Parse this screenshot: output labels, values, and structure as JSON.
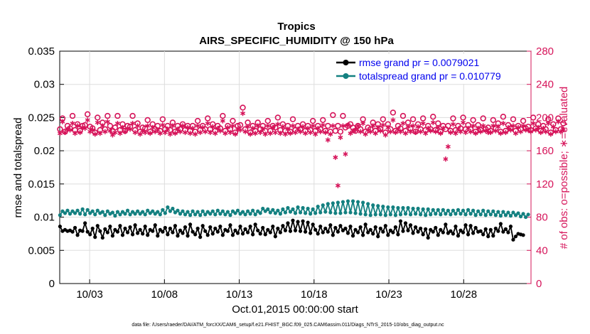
{
  "chart_data": {
    "type": "line",
    "title": "Tropics",
    "subtitle": "AIRS_SPECIFIC_HUMIDITY @ 150 hPa",
    "xlabel": "Oct.01,2015 00:00:00 start",
    "ylabel": "rmse and totalspread",
    "y2label": "# of obs: o=possible; ∗=evaluated",
    "footnote": "data file: /Users/raeder/DAI/ATM_forcXX/CAM6_setup/f.e21.FHIST_BGC.f09_025.CAM6assim.011/Diags_NTrS_2015-10/obs_diag_output.nc",
    "x_ticks": [
      "10/03",
      "10/08",
      "10/13",
      "10/18",
      "10/23",
      "10/28"
    ],
    "x_tick_days": [
      3,
      8,
      13,
      18,
      23,
      28
    ],
    "xlim": [
      1,
      32.5
    ],
    "ylim": [
      0,
      0.035
    ],
    "y_ticks": [
      "0",
      "0.005",
      "0.01",
      "0.015",
      "0.02",
      "0.025",
      "0.03",
      "0.035"
    ],
    "y2lim": [
      0,
      280
    ],
    "y2_ticks": [
      "0",
      "40",
      "80",
      "120",
      "160",
      "200",
      "240",
      "280"
    ],
    "grid": true,
    "legend_position": "top-right",
    "colors": {
      "rmse": "#000000",
      "spread": "#138080",
      "obs": "#d6145a",
      "legend_text": "#0000ee"
    },
    "series": [
      {
        "name": "rmse grand pr = 0.0079021",
        "axis": "left",
        "values": [
          0.0086,
          0.0079,
          0.0081,
          0.0079,
          0.008,
          0.0078,
          0.0084,
          0.0073,
          0.008,
          0.0079,
          0.0091,
          0.0078,
          0.0074,
          0.0083,
          0.007,
          0.0087,
          0.0079,
          0.0069,
          0.0082,
          0.0077,
          0.0086,
          0.0072,
          0.0081,
          0.0078,
          0.0087,
          0.0073,
          0.0083,
          0.0077,
          0.0085,
          0.0074,
          0.0088,
          0.0076,
          0.0081,
          0.0075,
          0.0086,
          0.0073,
          0.0081,
          0.0079,
          0.0088,
          0.0072,
          0.0081,
          0.0078,
          0.0084,
          0.0074,
          0.0083,
          0.0077,
          0.0087,
          0.0072,
          0.008,
          0.0076,
          0.0085,
          0.0072,
          0.0089,
          0.0078,
          0.0074,
          0.0083,
          0.007,
          0.0087,
          0.0079,
          0.0073,
          0.0085,
          0.0075,
          0.0083,
          0.0078,
          0.0086,
          0.0073,
          0.0081,
          0.0079,
          0.0088,
          0.0073,
          0.008,
          0.0076,
          0.0086,
          0.0075,
          0.0082,
          0.0077,
          0.0086,
          0.0074,
          0.0089,
          0.008,
          0.0075,
          0.0084,
          0.0074,
          0.0081,
          0.0077,
          0.0086,
          0.0071,
          0.0083,
          0.0077,
          0.0087,
          0.008,
          0.0091,
          0.0079,
          0.0095,
          0.008,
          0.0093,
          0.0079,
          0.0094,
          0.0078,
          0.0092,
          0.0076,
          0.0089,
          0.0081,
          0.0075,
          0.0086,
          0.0077,
          0.0083,
          0.0078,
          0.0088,
          0.0073,
          0.0084,
          0.0078,
          0.0087,
          0.008,
          0.0083,
          0.0076,
          0.0086,
          0.0072,
          0.0081,
          0.0077,
          0.0085,
          0.0073,
          0.0089,
          0.0077,
          0.0081,
          0.0075,
          0.0085,
          0.0071,
          0.0083,
          0.0078,
          0.0087,
          0.0073,
          0.008,
          0.0077,
          0.0085,
          0.0074,
          0.0094,
          0.0079,
          0.0091,
          0.008,
          0.0088,
          0.0076,
          0.0085,
          0.0078,
          0.0083,
          0.0074,
          0.0082,
          0.0069,
          0.0081,
          0.0078,
          0.0084,
          0.0073,
          0.0081,
          0.0077,
          0.0089,
          0.0076,
          0.0079,
          0.0075,
          0.0086,
          0.0072,
          0.008,
          0.0077,
          0.0088,
          0.0074,
          0.0087,
          0.0076,
          0.0084,
          0.0078,
          0.0079,
          0.0074,
          0.0082,
          0.0071,
          0.0081,
          0.0072,
          0.0083,
          0.0079,
          0.009,
          0.0078,
          0.0082,
          0.0077,
          0.0086,
          0.0066,
          0.0071,
          0.0075,
          0.0074,
          0.0073
        ]
      },
      {
        "name": "totalspread grand pr = 0.010779",
        "axis": "left",
        "values": [
          0.0103,
          0.0109,
          0.0106,
          0.011,
          0.0105,
          0.0109,
          0.0106,
          0.011,
          0.0105,
          0.0112,
          0.0104,
          0.0111,
          0.0106,
          0.0109,
          0.0104,
          0.011,
          0.0106,
          0.0108,
          0.0103,
          0.0109,
          0.0105,
          0.0107,
          0.0102,
          0.0108,
          0.0104,
          0.0108,
          0.0105,
          0.011,
          0.0104,
          0.0108,
          0.0105,
          0.0109,
          0.0105,
          0.0108,
          0.0104,
          0.011,
          0.0106,
          0.0109,
          0.0105,
          0.0108,
          0.0104,
          0.0111,
          0.0106,
          0.0115,
          0.0109,
          0.0113,
          0.0107,
          0.011,
          0.0105,
          0.0109,
          0.0104,
          0.0108,
          0.0103,
          0.0109,
          0.0104,
          0.0108,
          0.0103,
          0.0109,
          0.0104,
          0.0108,
          0.0105,
          0.0109,
          0.0104,
          0.011,
          0.0105,
          0.0109,
          0.0104,
          0.0108,
          0.0103,
          0.0109,
          0.0106,
          0.011,
          0.0105,
          0.0108,
          0.0104,
          0.0109,
          0.0105,
          0.011,
          0.0104,
          0.0109,
          0.0106,
          0.0113,
          0.0109,
          0.0112,
          0.0107,
          0.0111,
          0.0106,
          0.011,
          0.0105,
          0.0112,
          0.0107,
          0.0114,
          0.0108,
          0.0112,
          0.0106,
          0.0115,
          0.0107,
          0.0114,
          0.0106,
          0.0113,
          0.0105,
          0.0112,
          0.0106,
          0.0116,
          0.0107,
          0.0118,
          0.0108,
          0.012,
          0.0107,
          0.0121,
          0.0106,
          0.0122,
          0.0106,
          0.0123,
          0.0107,
          0.0124,
          0.0107,
          0.0124,
          0.0106,
          0.0123,
          0.0105,
          0.0122,
          0.0104,
          0.012,
          0.0103,
          0.0118,
          0.0104,
          0.0117,
          0.0104,
          0.0116,
          0.0103,
          0.0115,
          0.0104,
          0.0115,
          0.0103,
          0.0114,
          0.0104,
          0.0114,
          0.0105,
          0.0114,
          0.0104,
          0.0113,
          0.0105,
          0.0113,
          0.0104,
          0.0112,
          0.0103,
          0.0112,
          0.0104,
          0.0111,
          0.0105,
          0.0111,
          0.0104,
          0.0111,
          0.0105,
          0.011,
          0.0104,
          0.011,
          0.0105,
          0.0111,
          0.0105,
          0.011,
          0.0104,
          0.0111,
          0.0105,
          0.011,
          0.0103,
          0.0109,
          0.0104,
          0.011,
          0.0103,
          0.0109,
          0.0104,
          0.0109,
          0.0103,
          0.0108,
          0.0102,
          0.0108,
          0.0103,
          0.0107,
          0.0102,
          0.0107,
          0.0103,
          0.0106,
          0.0101,
          0.0105,
          0.01,
          0.0104
        ]
      },
      {
        "name": "# of obs possible",
        "axis": "right",
        "values": [
          186,
          199,
          183,
          190,
          187,
          202,
          185,
          192,
          184,
          190,
          191,
          204,
          189,
          187,
          182,
          200,
          185,
          194,
          186,
          202,
          190,
          184,
          188,
          202,
          185,
          192,
          184,
          190,
          189,
          202,
          185,
          193,
          183,
          188,
          187,
          197,
          183,
          192,
          186,
          190,
          184,
          198,
          186,
          190,
          185,
          194,
          183,
          190,
          186,
          192,
          185,
          190,
          184,
          190,
          183,
          196,
          185,
          190,
          186,
          199,
          186,
          192,
          184,
          190,
          187,
          202,
          184,
          190,
          186,
          196,
          182,
          190,
          191,
          212,
          186,
          194,
          182,
          190,
          184,
          194,
          186,
          190,
          184,
          196,
          184,
          190,
          188,
          200,
          185,
          192,
          184,
          190,
          183,
          198,
          185,
          190,
          186,
          192,
          184,
          190,
          185,
          196,
          184,
          190,
          186,
          197,
          184,
          190,
          183,
          203,
          184,
          190,
          183,
          202,
          188,
          190,
          192,
          188,
          184,
          190,
          186,
          198,
          183,
          188,
          186,
          194,
          184,
          192,
          186,
          198,
          182,
          192,
          186,
          206,
          184,
          190,
          187,
          202,
          184,
          194,
          187,
          198,
          183,
          192,
          186,
          199,
          185,
          190,
          186,
          201,
          185,
          193,
          183,
          190,
          186,
          190,
          184,
          199,
          185,
          190,
          187,
          200,
          186,
          191,
          186,
          197,
          183,
          191,
          185,
          199,
          186,
          188,
          184,
          197,
          187,
          193,
          183,
          201,
          184,
          191,
          187,
          198,
          184,
          190,
          186,
          196,
          187,
          189,
          185,
          200,
          187,
          192,
          184,
          190,
          186,
          198,
          182,
          192,
          185,
          199,
          186,
          193
        ]
      },
      {
        "name": "# of obs evaluated",
        "axis": "right",
        "values": [
          181,
          195,
          182,
          186,
          185,
          193,
          181,
          190,
          182,
          188,
          187,
          197,
          183,
          185,
          180,
          194,
          181,
          190,
          183,
          195,
          184,
          179,
          182,
          193,
          181,
          188,
          183,
          187,
          186,
          193,
          182,
          190,
          180,
          184,
          182,
          190,
          181,
          188,
          183,
          185,
          181,
          191,
          182,
          186,
          180,
          190,
          181,
          186,
          183,
          190,
          182,
          188,
          181,
          187,
          180,
          190,
          182,
          188,
          183,
          193,
          182,
          189,
          181,
          187,
          184,
          196,
          181,
          188,
          182,
          190,
          180,
          186,
          185,
          205,
          183,
          189,
          180,
          187,
          181,
          190,
          182,
          186,
          180,
          190,
          181,
          188,
          182,
          192,
          181,
          189,
          180,
          186,
          181,
          190,
          182,
          186,
          183,
          189,
          181,
          187,
          182,
          190,
          180,
          187,
          183,
          191,
          182,
          173,
          180,
          190,
          152,
          118,
          176,
          190,
          156,
          191,
          181,
          184,
          185,
          190,
          183,
          193,
          180,
          185,
          183,
          190,
          181,
          188,
          184,
          191,
          179,
          188,
          183,
          197,
          182,
          186,
          183,
          193,
          181,
          189,
          183,
          190,
          182,
          189,
          183,
          193,
          181,
          187,
          184,
          194,
          183,
          188,
          181,
          187,
          150,
          165,
          182,
          192,
          181,
          186,
          183,
          194,
          182,
          187,
          183,
          190,
          181,
          187,
          183,
          190,
          184,
          182,
          182,
          190,
          184,
          189,
          181,
          193,
          182,
          188,
          185,
          190,
          181,
          188,
          183,
          190,
          185,
          185,
          183,
          193,
          185,
          188,
          182,
          187,
          183,
          193,
          180,
          189,
          183,
          195,
          183,
          186
        ]
      }
    ]
  }
}
